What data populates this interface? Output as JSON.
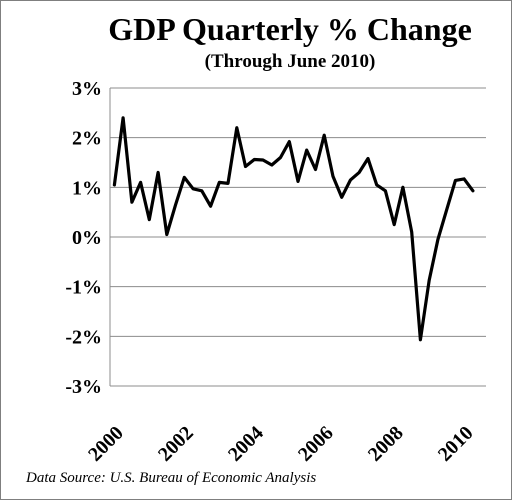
{
  "chart_data": {
    "type": "line",
    "title": "GDP Quarterly % Change",
    "subtitle": "(Through June 2010)",
    "source": "Data Source: U.S. Bureau of Economic Analysis",
    "xlabel": "",
    "ylabel": "",
    "ylim": [
      -3,
      3
    ],
    "y_ticks": [
      "3%",
      "2%",
      "1%",
      "0%",
      "-1%",
      "-2%",
      "-3%"
    ],
    "y_tick_values": [
      3,
      2,
      1,
      0,
      -1,
      -2,
      -3
    ],
    "x_ticks": [
      "2000",
      "2002",
      "2004",
      "2006",
      "2008",
      "2010"
    ],
    "x_tick_values": [
      2000,
      2002,
      2004,
      2006,
      2008,
      2010
    ],
    "x_range": [
      1999.875,
      2010.625
    ],
    "grid": true,
    "legend": "none",
    "series_color": "#000000",
    "x": [
      2000.0,
      2000.25,
      2000.5,
      2000.75,
      2001.0,
      2001.25,
      2001.5,
      2001.75,
      2002.0,
      2002.25,
      2002.5,
      2002.75,
      2003.0,
      2003.25,
      2003.5,
      2003.75,
      2004.0,
      2004.25,
      2004.5,
      2004.75,
      2005.0,
      2005.25,
      2005.5,
      2005.75,
      2006.0,
      2006.25,
      2006.5,
      2006.75,
      2007.0,
      2007.25,
      2007.5,
      2007.75,
      2008.0,
      2008.25,
      2008.5,
      2008.75,
      2009.0,
      2009.25,
      2009.5,
      2009.75,
      2010.0,
      2010.25
    ],
    "values": [
      1.05,
      2.4,
      0.7,
      1.1,
      0.35,
      1.3,
      0.05,
      0.65,
      1.2,
      0.97,
      0.93,
      0.62,
      1.1,
      1.08,
      2.2,
      1.42,
      1.56,
      1.55,
      1.45,
      1.6,
      1.92,
      1.12,
      1.75,
      1.36,
      2.05,
      1.22,
      0.8,
      1.15,
      1.3,
      1.58,
      1.05,
      0.93,
      0.25,
      1.0,
      0.1,
      -2.07,
      -0.87,
      -0.05,
      0.55,
      1.14,
      1.17,
      0.93
    ]
  }
}
